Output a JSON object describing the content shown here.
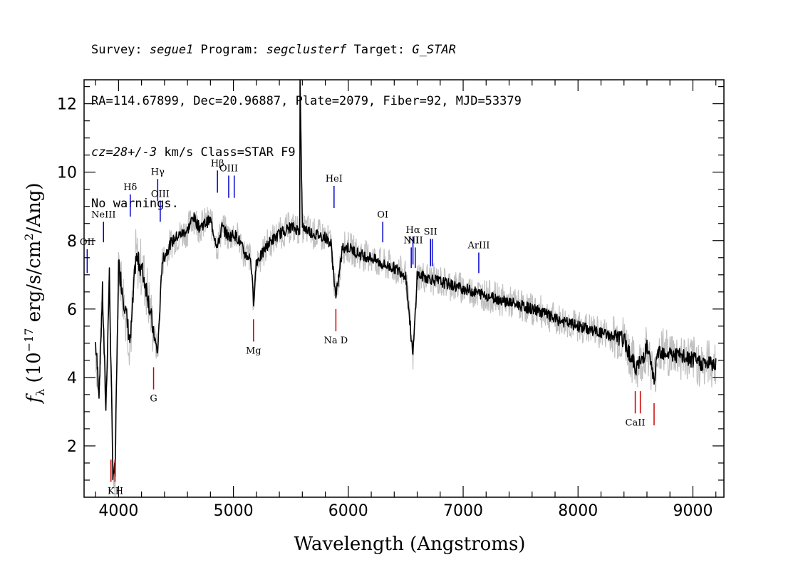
{
  "header": {
    "line1": {
      "survey_label": "Survey: ",
      "survey": "segue1",
      "program_label": " Program: ",
      "program": "segclusterf",
      "target_label": " Target: ",
      "target": "G_STAR"
    },
    "line2": "RA=114.67899, Dec=20.96887, Plate=2079, Fiber=92, MJD=53379",
    "line3": {
      "cz": "cz=28+/-3",
      "rest": " km/s Class=STAR F9"
    },
    "line4": "No warnings."
  },
  "chart_data": {
    "type": "line",
    "xlabel": "Wavelength (Angstroms)",
    "ylabel": "f_λ (10^-17 erg/s/cm^2/Ang)",
    "ylabel_parts": {
      "f": "f",
      "sub": "λ",
      "unit_a": " (10",
      "exp": "−17",
      "unit_b": " erg/s/cm",
      "sq": "2",
      "unit_c": "/Ang)"
    },
    "xlim": [
      3700,
      9270
    ],
    "ylim": [
      0.5,
      12.7
    ],
    "xticks": [
      4000,
      5000,
      6000,
      7000,
      8000,
      9000
    ],
    "xtick_labels": [
      "4000",
      "5000",
      "6000",
      "7000",
      "8000",
      "9000"
    ],
    "yticks": [
      2,
      4,
      6,
      8,
      10,
      12
    ],
    "ytick_labels": [
      "2",
      "4",
      "6",
      "8",
      "10",
      "12"
    ],
    "colors": {
      "flux": "#000000",
      "error": "#c0c0c0",
      "emission": "#0000cc",
      "absorption": "#cc0000"
    },
    "series": [
      {
        "role": "flux",
        "x": [
          3800,
          3830,
          3860,
          3890,
          3920,
          3950,
          3970,
          4000,
          4050,
          4102,
          4150,
          4200,
          4250,
          4300,
          4340,
          4380,
          4450,
          4500,
          4550,
          4600,
          4650,
          4700,
          4750,
          4800,
          4861,
          4900,
          4960,
          5007,
          5050,
          5100,
          5150,
          5175,
          5200,
          5250,
          5300,
          5400,
          5500,
          5577,
          5580,
          5600,
          5700,
          5800,
          5850,
          5892,
          5950,
          6000,
          6100,
          6200,
          6300,
          6400,
          6500,
          6563,
          6600,
          6700,
          6800,
          6900,
          7000,
          7100,
          7200,
          7300,
          7400,
          7500,
          7600,
          7700,
          7800,
          7900,
          8000,
          8100,
          8200,
          8300,
          8400,
          8498,
          8542,
          8600,
          8662,
          8700,
          8800,
          8900,
          9000,
          9100,
          9200
        ],
        "y": [
          5.0,
          3.6,
          6.5,
          3.1,
          7.0,
          1.3,
          1.2,
          7.3,
          6.2,
          5.0,
          7.5,
          7.2,
          6.5,
          5.4,
          4.7,
          7.4,
          7.9,
          8.1,
          8.2,
          8.3,
          8.7,
          8.4,
          8.5,
          8.6,
          7.8,
          8.4,
          8.1,
          8.2,
          8.0,
          7.6,
          7.5,
          6.2,
          7.4,
          7.6,
          7.9,
          8.2,
          8.4,
          8.3,
          12.7,
          8.4,
          8.2,
          8.1,
          7.9,
          6.3,
          7.8,
          7.8,
          7.6,
          7.5,
          7.3,
          7.2,
          7.0,
          4.6,
          7.0,
          6.9,
          6.8,
          6.7,
          6.6,
          6.5,
          6.4,
          6.3,
          6.2,
          6.1,
          6.0,
          5.9,
          5.7,
          5.6,
          5.5,
          5.4,
          5.3,
          5.2,
          5.1,
          4.3,
          4.4,
          4.9,
          3.9,
          4.8,
          4.7,
          4.6,
          4.5,
          4.4,
          4.4
        ]
      }
    ],
    "emission_lines": [
      {
        "label": "OII",
        "x": 3727,
        "y_top": 7.75,
        "y_bot": 7.05
      },
      {
        "label": "NeIII",
        "x": 3869,
        "y_top": 8.55,
        "y_bot": 7.95
      },
      {
        "label": "Hδ",
        "x": 4102,
        "y_top": 9.35,
        "y_bot": 8.7
      },
      {
        "label": "Hγ",
        "x": 4341,
        "y_top": 9.8,
        "y_bot": 9.15
      },
      {
        "label": "OIII",
        "x": 4363,
        "y_top": 9.15,
        "y_bot": 8.55
      },
      {
        "label": "Hβ",
        "x": 4861,
        "y_top": 10.05,
        "y_bot": 9.4
      },
      {
        "label": "OIII",
        "x": 4959,
        "y_top": 9.9,
        "y_bot": 9.25
      },
      {
        "label": "",
        "x": 5007,
        "y_top": 9.9,
        "y_bot": 9.25
      },
      {
        "label": "HeI",
        "x": 5876,
        "y_top": 9.6,
        "y_bot": 8.95
      },
      {
        "label": "OI",
        "x": 6300,
        "y_top": 8.55,
        "y_bot": 7.95
      },
      {
        "label": "NII",
        "x": 6548,
        "y_top": 7.8,
        "y_bot": 7.2
      },
      {
        "label": "Hα",
        "x": 6563,
        "y_top": 8.1,
        "y_bot": 7.3
      },
      {
        "label": "NII",
        "x": 6583,
        "y_top": 7.8,
        "y_bot": 7.2
      },
      {
        "label": "SII",
        "x": 6716,
        "y_top": 8.05,
        "y_bot": 7.25
      },
      {
        "label": "",
        "x": 6731,
        "y_top": 8.05,
        "y_bot": 7.25
      },
      {
        "label": "ArIII",
        "x": 7136,
        "y_top": 7.65,
        "y_bot": 7.05
      }
    ],
    "absorption_lines": [
      {
        "label": "K",
        "x": 3934,
        "y_top": 1.6,
        "y_bot": 0.95
      },
      {
        "label": "H",
        "x": 3969,
        "y_top": 1.6,
        "y_bot": 0.95
      },
      {
        "label": "G",
        "x": 4305,
        "y_top": 4.3,
        "y_bot": 3.65
      },
      {
        "label": "Mg",
        "x": 5175,
        "y_top": 5.7,
        "y_bot": 5.05
      },
      {
        "label": "Na D",
        "x": 5892,
        "y_top": 6.0,
        "y_bot": 5.35
      },
      {
        "label": "CaII",
        "x": 8498,
        "y_top": 3.6,
        "y_bot": 2.95
      },
      {
        "label": "",
        "x": 8542,
        "y_top": 3.6,
        "y_bot": 2.95
      },
      {
        "label": "",
        "x": 8662,
        "y_top": 3.25,
        "y_bot": 2.6
      }
    ]
  }
}
